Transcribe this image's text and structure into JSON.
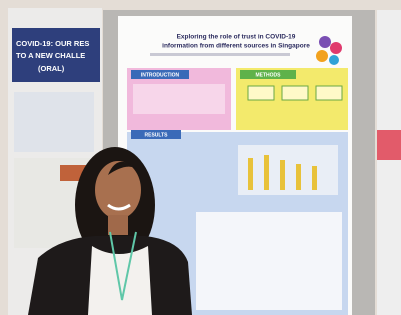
{
  "left_banner": {
    "lines": [
      "COVID-19: OUR RES",
      "TO A NEW CHALLE",
      "(ORAL)"
    ]
  },
  "poster": {
    "title_lines": [
      "Exploring the role of trust in COVID-19",
      "information from different sources in Singapore"
    ],
    "sections": [
      "INTRODUCTION",
      "METHODS",
      "RESULTS"
    ]
  }
}
